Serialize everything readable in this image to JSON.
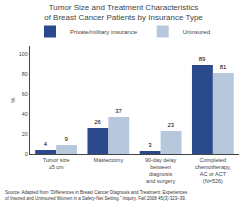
{
  "chart_data": {
    "type": "bar",
    "title": "Tumor Size and Treatment Characteristics\nof Breast Cancer Patients by Insurance Type",
    "categories": [
      "Tumor size\n≥5 cm",
      "Mastectomy",
      "90-day delay\nbetween\ndiagnosis\nand surgery",
      "Completed\nchemotherapy,\nAC or ACT\n(N=526)"
    ],
    "series": [
      {
        "name": "Private/military insurance",
        "color": "#2b4a8b",
        "values": [
          4,
          26,
          3,
          89
        ]
      },
      {
        "name": "Uninsured",
        "color": "#b8c8dc",
        "values": [
          9,
          37,
          23,
          81
        ]
      }
    ],
    "ylabel": "%",
    "ylim": [
      0,
      108
    ],
    "yticks": [
      0,
      20,
      40,
      60,
      80,
      100
    ],
    "data_labels": true,
    "grid": false,
    "legend": "upper left",
    "annotations": [
      "Source: Adapted from \"Differences in Breast Cancer Diagnosis and Treatment: Experiences\nof Insured and Uninsured Women in a Safety-Net Setting.\" Inquiry. Fall 2008 45(3):323–39."
    ]
  }
}
